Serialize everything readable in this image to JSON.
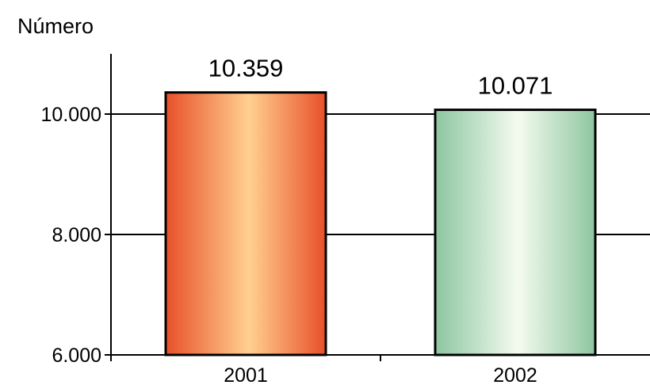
{
  "chart_data": {
    "type": "bar",
    "ylabel": "Número",
    "categories": [
      "2001",
      "2002"
    ],
    "values": [
      10359,
      10071
    ],
    "value_labels": [
      "10.359",
      "10.071"
    ],
    "ylim": [
      6000,
      11000
    ],
    "yticks": [
      6000,
      8000,
      10000
    ],
    "ytick_labels": [
      "6.000",
      "8.000",
      "10.000"
    ],
    "grid": true,
    "bar_colors": [
      {
        "edge": "#e8502a",
        "center": "#ffd090"
      },
      {
        "edge": "#8dc6a0",
        "center": "#f4fbef"
      }
    ]
  }
}
